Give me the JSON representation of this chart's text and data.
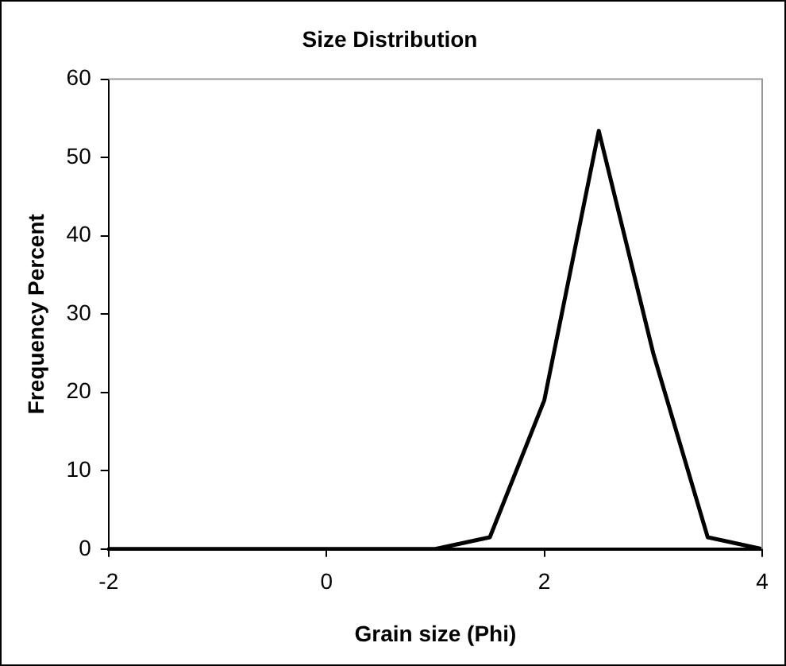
{
  "chart_data": {
    "type": "line",
    "title": "Size Distribution",
    "xlabel": "Grain size (Phi)",
    "ylabel": "Frequency Percent",
    "x": [
      -2,
      -1.5,
      -1,
      -0.5,
      0,
      0.5,
      1,
      1.5,
      2,
      2.5,
      3,
      3.5,
      4
    ],
    "series": [
      {
        "color": "#000000",
        "values": [
          0,
          0,
          0,
          0,
          0,
          0,
          0,
          1.5,
          19,
          53.4,
          25,
          1.5,
          0
        ]
      }
    ],
    "xlim": [
      -2,
      4
    ],
    "xticks": [
      -2,
      0,
      2,
      4
    ],
    "ylim": [
      0,
      60
    ],
    "yticks": [
      0,
      10,
      20,
      30,
      40,
      50,
      60
    ],
    "grid": false,
    "legend": false,
    "marker": "none",
    "line_style": "solid"
  }
}
